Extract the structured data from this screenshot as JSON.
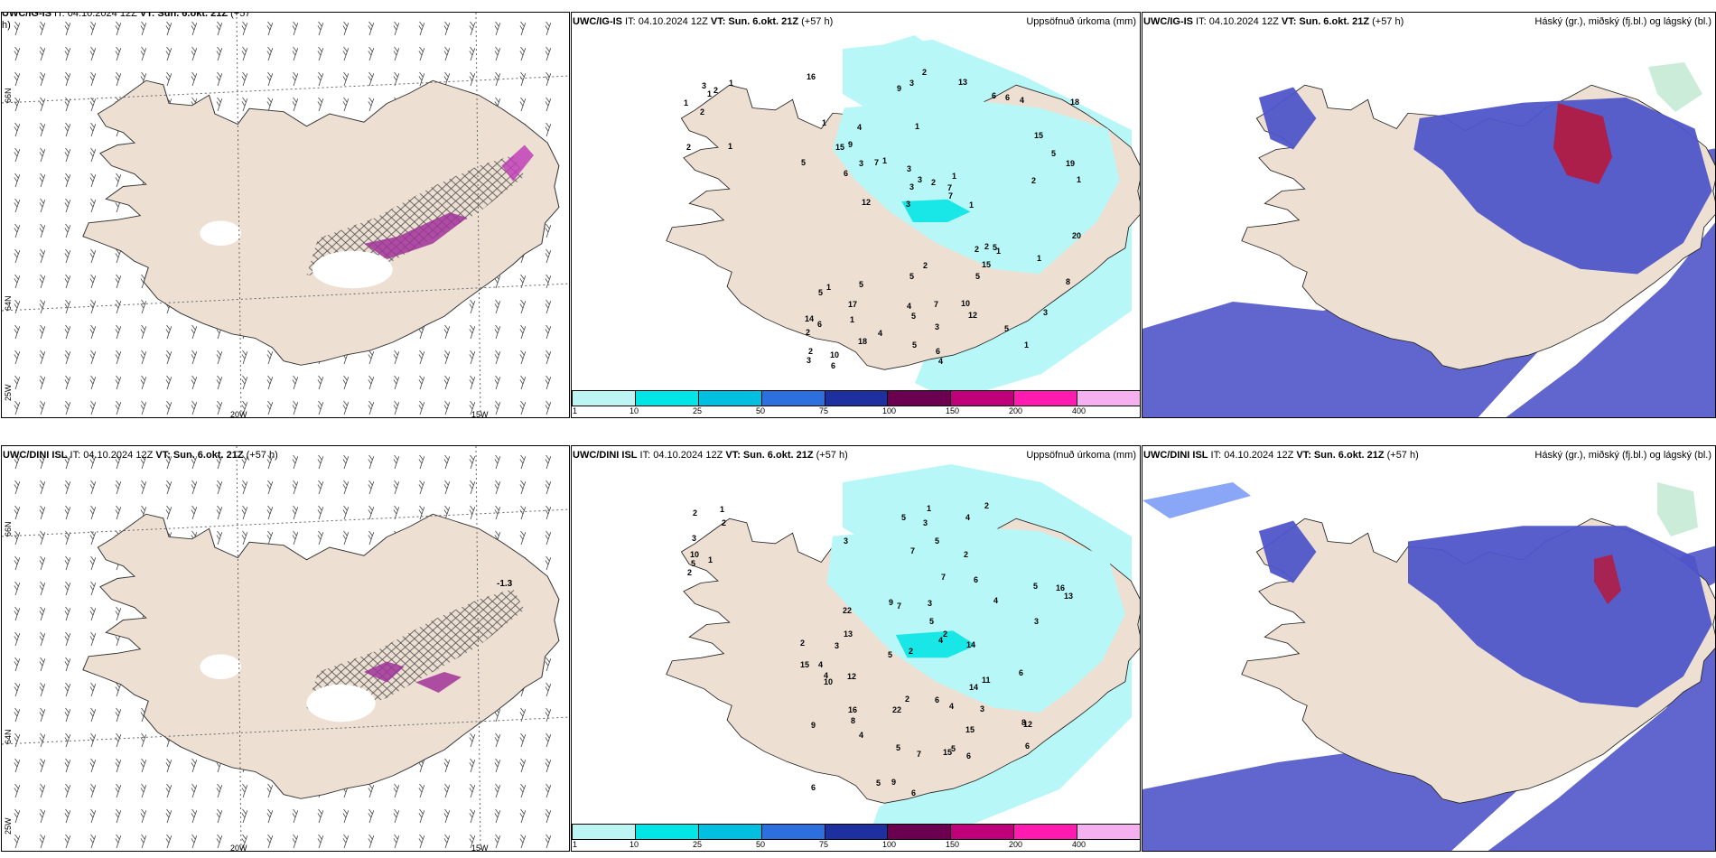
{
  "rows": [
    {
      "model": "UWC/IG-IS",
      "wind_panel": {
        "title_model": "UWC/IG-IS",
        "title_it": " IT: 04.10.2024 12Z ",
        "title_vt": "VT: Sun. 6.okt. 21Z",
        "title_lead": " (+57",
        "title_lead2": "h)"
      },
      "precip_panel": {
        "title_model": "UWC/IG-IS",
        "title_it": " IT: 04.10.2024 12Z ",
        "title_vt": "VT: Sun. 6.okt. 21Z",
        "title_lead": " (+57 h)",
        "right_title": "Uppsöfnuð úrkoma (mm)",
        "labels": [
          "1",
          "1",
          "1",
          "2",
          "2",
          "2",
          "3",
          "1",
          "1",
          "1",
          "2",
          "1",
          "1",
          "1",
          "1",
          "1",
          "3",
          "1",
          "2",
          "5",
          "3",
          "4",
          "3",
          "4",
          "6",
          "5",
          "1",
          "3",
          "5",
          "4",
          "7",
          "6",
          "5",
          "18",
          "19",
          "7",
          "2",
          "5",
          "7",
          "5",
          "15",
          "18",
          "15",
          "12",
          "17",
          "6",
          "3",
          "7",
          "4",
          "2",
          "12",
          "5",
          "9",
          "6",
          "10",
          "13",
          "9",
          "3",
          "8",
          "5",
          "4",
          "2",
          "3",
          "14",
          "16",
          "15",
          "20",
          "3",
          "3",
          "2",
          "6",
          "1",
          "1",
          "5",
          "2",
          "2",
          "5",
          "6",
          "10"
        ]
      },
      "cloud_panel": {
        "title_model": "UWC/IG-IS",
        "title_it": " IT: 04.10.2024 12Z ",
        "title_vt": "VT: Sun. 6.okt. 21Z",
        "title_lead": " (+57 h)",
        "right_title": "Háský (gr.), miðský (fj.bl.) og lágský (bl.)"
      }
    },
    {
      "model": "UWC/DINI ISL",
      "wind_panel": {
        "title_model": "UWC/DINI ISL",
        "title_it": " IT: 04.10.2024 12Z ",
        "title_vt": "VT: Sun. 6.okt. 21Z",
        "title_lead": " (+57 h)",
        "title_lead2": "",
        "value_label": "-1.3"
      },
      "precip_panel": {
        "title_model": "UWC/DINI ISL",
        "title_it": " IT: 04.10.2024 12Z ",
        "title_vt": "VT: Sun. 6.okt. 21Z",
        "title_lead": " (+57 h)",
        "right_title": "Uppsöfnuð úrkoma (mm)",
        "labels": [
          "2",
          "1",
          "2",
          "2",
          "1",
          "3",
          "10",
          "5",
          "5",
          "4",
          "4",
          "1",
          "3",
          "4",
          "6",
          "5",
          "6",
          "2",
          "8",
          "9",
          "6",
          "3",
          "7",
          "2",
          "5",
          "5",
          "4",
          "4",
          "7",
          "11",
          "22",
          "4",
          "5",
          "6",
          "12",
          "10",
          "16",
          "14",
          "6",
          "6",
          "13",
          "5",
          "7",
          "12",
          "15",
          "13",
          "14",
          "15",
          "22",
          "15",
          "7",
          "5",
          "3",
          "3",
          "5",
          "4",
          "9",
          "8",
          "3",
          "3",
          "6",
          "2",
          "2",
          "2",
          "2",
          "9",
          "16"
        ]
      },
      "cloud_panel": {
        "title_model": "UWC/DINI ISL",
        "title_it": " IT: 04.10.2024 12Z ",
        "title_vt": "VT: Sun. 6.okt. 21Z",
        "title_lead": " (+57 h)",
        "right_title": "Háský (gr.), miðský (fj.bl.) og lágský (bl.)"
      }
    }
  ],
  "axis": {
    "lon_20w": "20W",
    "lon_15w": "15W",
    "lat_66n": "66N",
    "lat_64n": "64N",
    "lat_25w": "25W"
  },
  "colorbar": {
    "colors": [
      "#bdf5f5",
      "#00e6e6",
      "#00bfe0",
      "#2e6fe0",
      "#1e2fa0",
      "#6b0050",
      "#c0007a",
      "#ff1ab0",
      "#f5b0f0"
    ],
    "ticks": [
      "1",
      "10",
      "25",
      "50",
      "75",
      "100",
      "150",
      "200",
      "400"
    ]
  },
  "colors": {
    "land": "#ede0d2",
    "precip_light": "#b8f7f7",
    "precip_mid": "#19e6e6",
    "cloud_high": "#c0102a",
    "cloud_mid": "#4f55c8",
    "cloud_low": "#3b6cf0",
    "snow_purple": "#a0329a"
  }
}
